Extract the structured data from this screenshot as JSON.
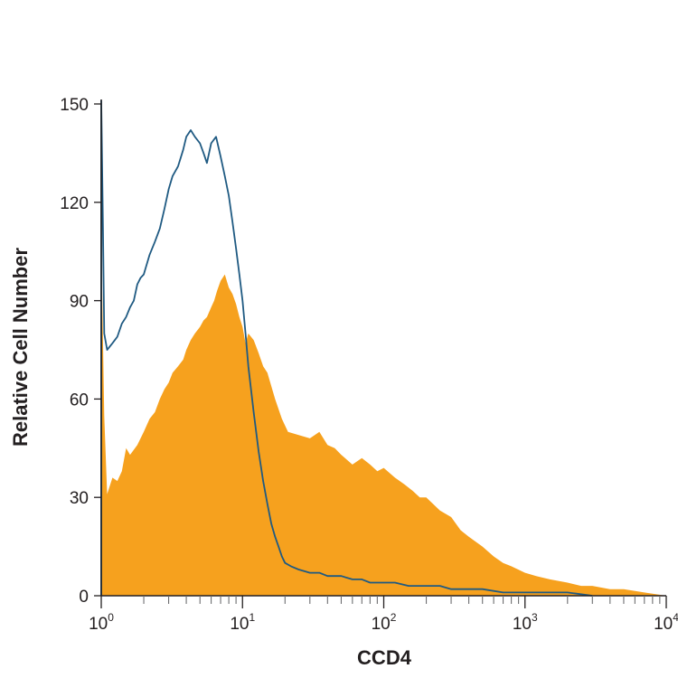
{
  "chart_data": {
    "type": "area",
    "title": "",
    "xlabel": "CCD4",
    "ylabel": "Relative Cell Number",
    "xscale": "log",
    "xlim": [
      1,
      10000
    ],
    "ylim": [
      0,
      150
    ],
    "grid": false,
    "legend": "none",
    "x_ticks": [
      {
        "value": 1,
        "base": "10",
        "exp": "0"
      },
      {
        "value": 10,
        "base": "10",
        "exp": "1"
      },
      {
        "value": 100,
        "base": "10",
        "exp": "2"
      },
      {
        "value": 1000,
        "base": "10",
        "exp": "3"
      },
      {
        "value": 10000,
        "base": "10",
        "exp": "4"
      }
    ],
    "y_ticks": [
      "0",
      "30",
      "60",
      "90",
      "120",
      "150"
    ],
    "y_tick_values": [
      0,
      30,
      60,
      90,
      120,
      150
    ],
    "series": [
      {
        "style": "filled",
        "color": "#f6a11e",
        "x": [
          1,
          1.05,
          1.1,
          1.2,
          1.3,
          1.4,
          1.5,
          1.6,
          1.8,
          2,
          2.2,
          2.4,
          2.6,
          2.8,
          3,
          3.2,
          3.5,
          3.8,
          4,
          4.3,
          4.6,
          5,
          5.3,
          5.6,
          6,
          6.3,
          6.6,
          7,
          7.5,
          8,
          8.5,
          9,
          9.5,
          10,
          10.5,
          11,
          12,
          13,
          14,
          15,
          17,
          19,
          21,
          25,
          30,
          35,
          40,
          45,
          50,
          60,
          70,
          80,
          90,
          100,
          120,
          140,
          160,
          180,
          200,
          250,
          300,
          350,
          400,
          500,
          600,
          700,
          800,
          1000,
          1200,
          1500,
          2000,
          2500,
          3000,
          4000,
          5000,
          7000,
          10000
        ],
        "y": [
          110,
          55,
          31,
          36,
          35,
          38,
          45,
          43,
          46,
          50,
          54,
          56,
          60,
          63,
          65,
          68,
          70,
          72,
          75,
          78,
          80,
          82,
          84,
          85,
          88,
          90,
          93,
          96,
          98,
          94,
          92,
          89,
          85,
          82,
          77,
          80,
          78,
          74,
          70,
          68,
          60,
          54,
          50,
          49,
          48,
          50,
          46,
          45,
          43,
          40,
          42,
          40,
          38,
          39,
          36,
          34,
          32,
          30,
          30,
          26,
          24,
          20,
          18,
          15,
          12,
          10,
          9,
          7,
          6,
          5,
          4,
          3,
          3,
          2,
          2,
          1,
          0
        ]
      },
      {
        "style": "outline",
        "color": "#1f5a82",
        "x": [
          1,
          1.03,
          1.05,
          1.1,
          1.2,
          1.3,
          1.4,
          1.5,
          1.6,
          1.7,
          1.8,
          1.9,
          2,
          2.2,
          2.4,
          2.6,
          2.8,
          3,
          3.2,
          3.5,
          3.8,
          4,
          4.3,
          4.6,
          5,
          5.3,
          5.6,
          6,
          6.5,
          7,
          7.5,
          8,
          8.5,
          9,
          9.5,
          10,
          10.5,
          11,
          12,
          13,
          14,
          15,
          16,
          17,
          18,
          19,
          20,
          22,
          25,
          30,
          35,
          40,
          50,
          60,
          70,
          80,
          100,
          120,
          150,
          200,
          250,
          300,
          400,
          500,
          700,
          1000,
          1500,
          2000,
          3000
        ],
        "y": [
          151,
          110,
          80,
          75,
          77,
          79,
          83,
          85,
          88,
          90,
          95,
          97,
          98,
          104,
          108,
          112,
          118,
          124,
          128,
          131,
          136,
          140,
          142,
          140,
          138,
          135,
          132,
          138,
          140,
          134,
          128,
          122,
          114,
          106,
          98,
          90,
          80,
          70,
          56,
          44,
          35,
          28,
          22,
          18,
          15,
          12,
          10,
          9,
          8,
          7,
          7,
          6,
          6,
          5,
          5,
          4,
          4,
          4,
          3,
          3,
          3,
          2,
          2,
          2,
          1,
          1,
          1,
          1,
          0
        ]
      }
    ]
  }
}
